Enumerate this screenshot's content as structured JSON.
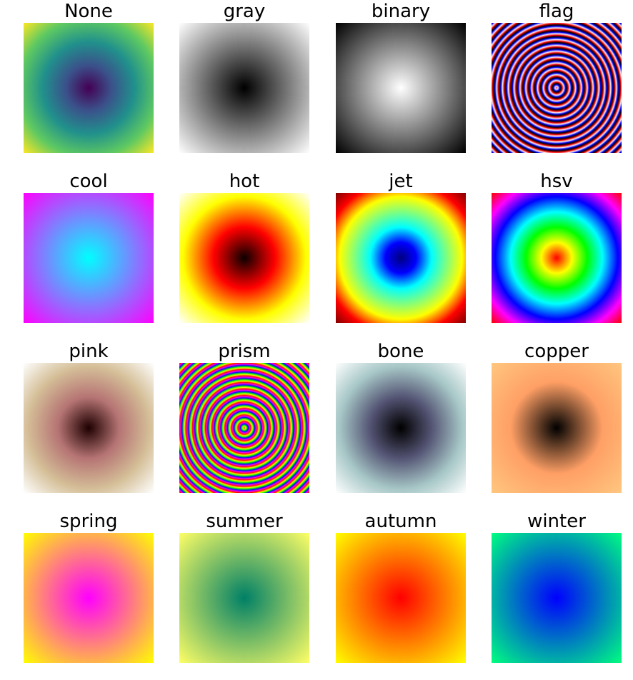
{
  "chart_data": {
    "type": "heatmap",
    "description_of_data": "",
    "layout": {
      "rows": 4,
      "cols": 4
    },
    "axis": "off",
    "grid": false,
    "panels": [
      {
        "title": "None",
        "colormap": "viridis",
        "pattern": "radial",
        "stops": [
          "#440154",
          "#3b528b",
          "#21918c",
          "#5ec962",
          "#fde725"
        ]
      },
      {
        "title": "gray",
        "colormap": "gray",
        "pattern": "radial",
        "stops": [
          "#000000",
          "#ffffff"
        ]
      },
      {
        "title": "binary",
        "colormap": "binary",
        "pattern": "radial",
        "stops": [
          "#ffffff",
          "#000000"
        ]
      },
      {
        "title": "flag",
        "colormap": "flag",
        "pattern": "rings",
        "ring_period": 0.09,
        "stops": [
          "#ff0000",
          "#ffffff",
          "#0000ff",
          "#000000",
          "#ff0000"
        ]
      },
      {
        "title": "cool",
        "colormap": "cool",
        "pattern": "radial",
        "stops": [
          "#00ffff",
          "#ff00ff"
        ]
      },
      {
        "title": "hot",
        "colormap": "hot",
        "pattern": "radial",
        "stops": [
          "#0b0000",
          "#ff0000",
          "#ffff00",
          "#ffffff"
        ]
      },
      {
        "title": "jet",
        "colormap": "jet",
        "pattern": "radial",
        "stops": [
          "#000080",
          "#0000ff",
          "#00ffff",
          "#7fff7f",
          "#ffff00",
          "#ff0000",
          "#800000"
        ]
      },
      {
        "title": "hsv",
        "colormap": "hsv",
        "pattern": "radial",
        "stops": [
          "#ff0000",
          "#ffff00",
          "#00ff00",
          "#00ffff",
          "#0000ff",
          "#ff00ff",
          "#ff0000"
        ]
      },
      {
        "title": "pink",
        "colormap": "pink",
        "pattern": "radial",
        "stops": [
          "#1e0000",
          "#b67474",
          "#d5bf98",
          "#ffffff"
        ]
      },
      {
        "title": "prism",
        "colormap": "prism",
        "pattern": "rings",
        "ring_period": 0.1,
        "stops": [
          "#ff0000",
          "#ffff00",
          "#00ff00",
          "#0000ff",
          "#ff00ff",
          "#ff0000"
        ]
      },
      {
        "title": "bone",
        "colormap": "bone",
        "pattern": "radial",
        "stops": [
          "#000000",
          "#545474",
          "#a7c7c7",
          "#ffffff"
        ]
      },
      {
        "title": "copper",
        "colormap": "copper",
        "pattern": "radial",
        "stops": [
          "#000000",
          "#ffa066",
          "#ffc77f"
        ]
      },
      {
        "title": "spring",
        "colormap": "spring",
        "pattern": "radial",
        "stops": [
          "#ff00ff",
          "#ffff00"
        ]
      },
      {
        "title": "summer",
        "colormap": "summer",
        "pattern": "radial",
        "stops": [
          "#008066",
          "#ffff66"
        ]
      },
      {
        "title": "autumn",
        "colormap": "autumn",
        "pattern": "radial",
        "stops": [
          "#ff0000",
          "#ffff00"
        ]
      },
      {
        "title": "winter",
        "colormap": "winter",
        "pattern": "radial",
        "stops": [
          "#0000ff",
          "#00ff80"
        ]
      }
    ]
  }
}
